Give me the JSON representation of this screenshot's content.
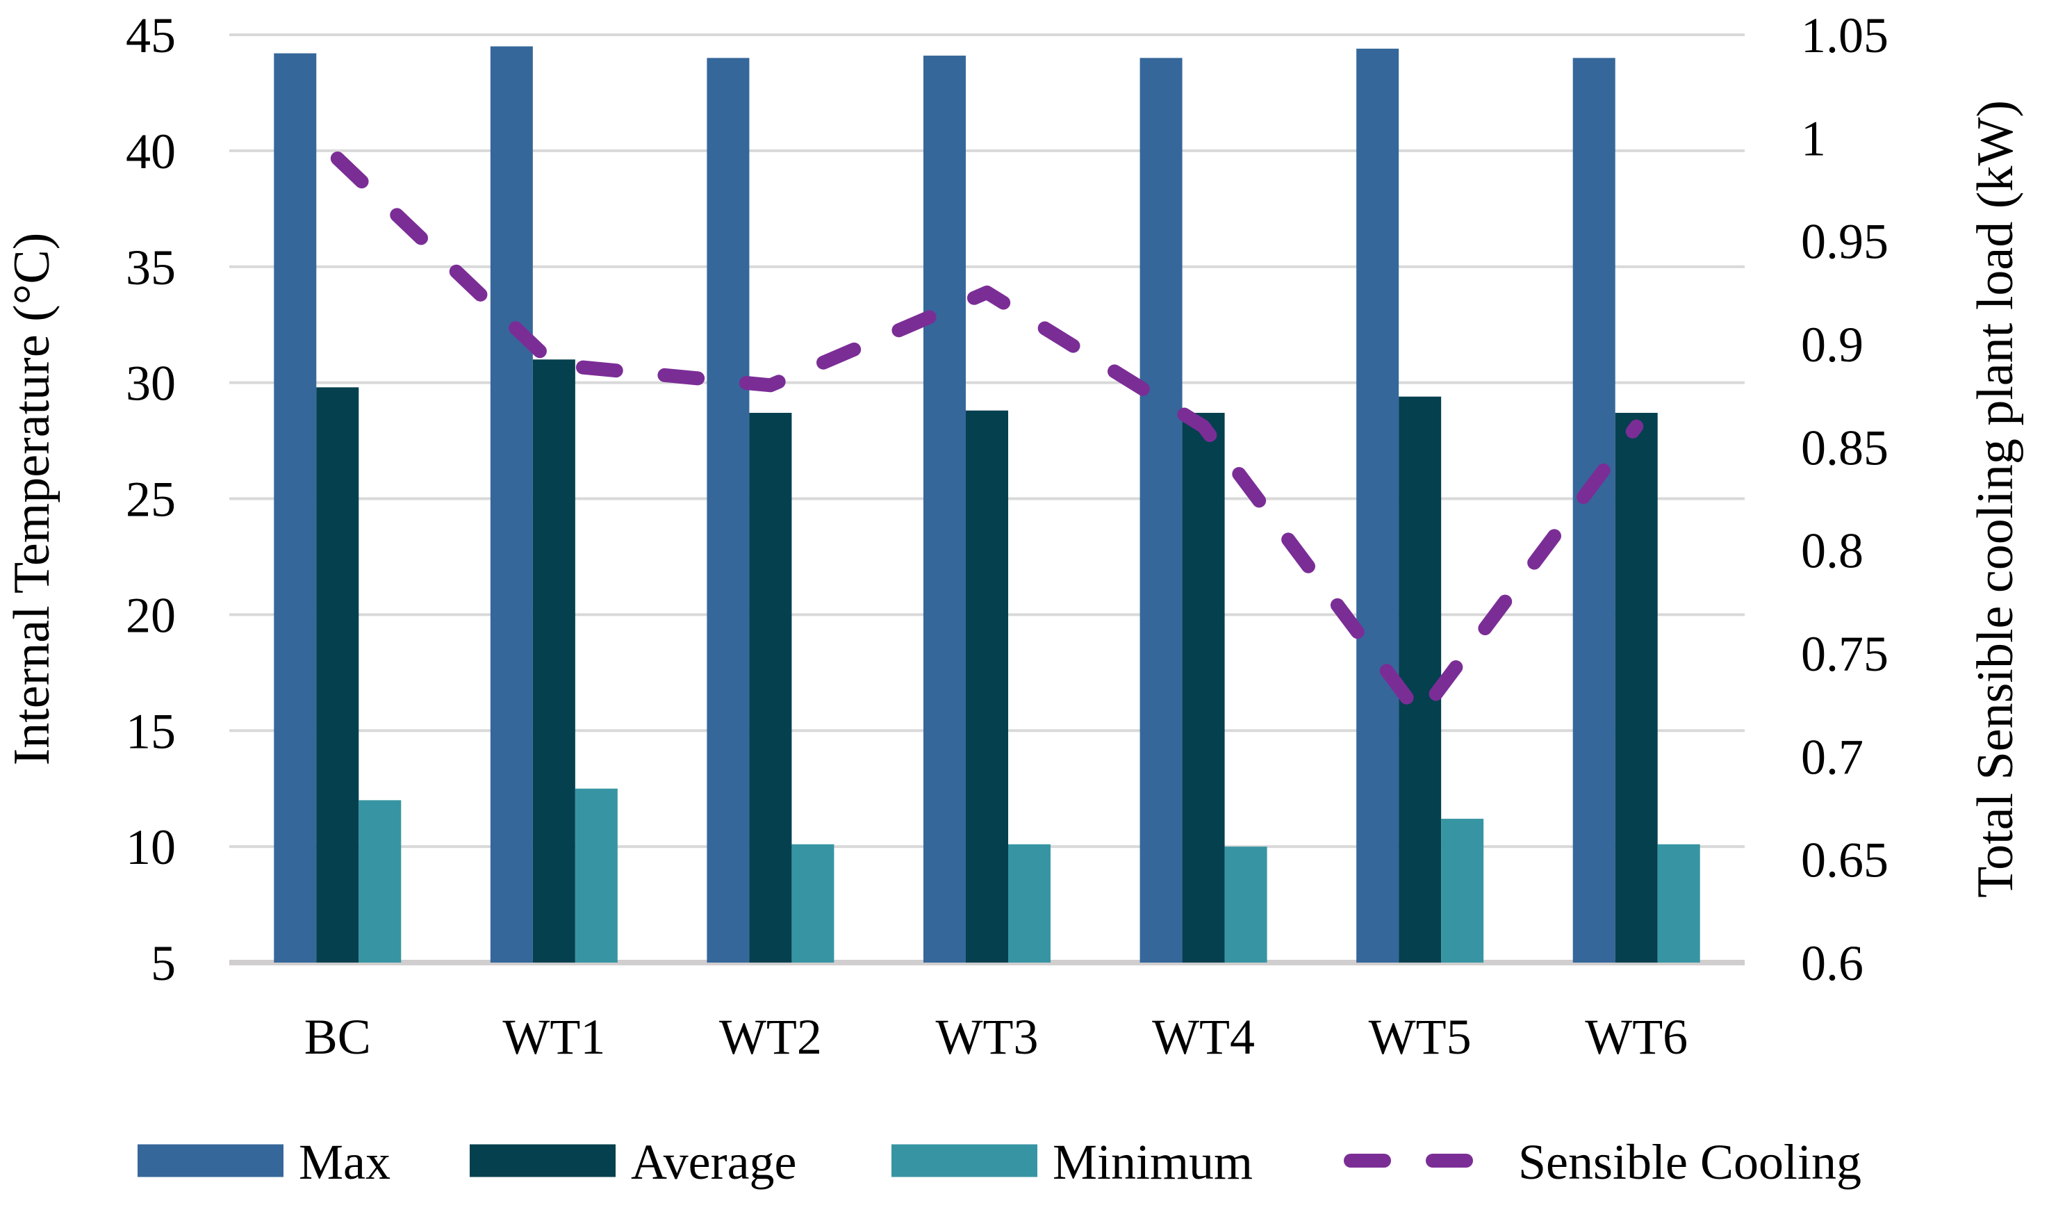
{
  "figure": {
    "background": "#FFFFFF",
    "grid_color": "#D9D9D9",
    "baseline_color": "#D0CECE"
  },
  "legend": {
    "items": [
      {
        "label": "Max",
        "marker": "swatch",
        "color": "#36679A"
      },
      {
        "label": "Average",
        "marker": "swatch",
        "color": "#05404F"
      },
      {
        "label": "Minimum",
        "marker": "swatch",
        "color": "#3795A3"
      },
      {
        "label": "Sensible Cooling",
        "marker": "dashed-line",
        "color": "#7B2D96"
      }
    ]
  },
  "chart_data": {
    "type": "bar+line-combo",
    "categories": [
      "BC",
      "WT1",
      "WT2",
      "WT3",
      "WT4",
      "WT5",
      "WT6"
    ],
    "series": [
      {
        "name": "Max",
        "type": "bar",
        "axis": "left",
        "color": "#36679A",
        "values": [
          44.2,
          44.5,
          44.0,
          44.1,
          44.0,
          44.4,
          44.0
        ]
      },
      {
        "name": "Average",
        "type": "bar",
        "axis": "left",
        "color": "#05404F",
        "values": [
          29.8,
          31.0,
          28.7,
          28.8,
          28.7,
          29.4,
          28.7
        ]
      },
      {
        "name": "Minimum",
        "type": "bar",
        "axis": "left",
        "color": "#3795A3",
        "values": [
          12.0,
          12.5,
          10.1,
          10.1,
          10.0,
          11.2,
          10.1
        ]
      },
      {
        "name": "Sensible Cooling",
        "type": "dashed-line",
        "axis": "right",
        "color": "#7B2D96",
        "values": [
          0.99,
          0.89,
          0.88,
          0.925,
          0.86,
          0.72,
          0.86
        ]
      }
    ],
    "ylabel_left": "Internal Temperature (°C)",
    "ylabel_right": "Total Sensible cooling plant load (kW)",
    "xlabel": "",
    "y_left": {
      "min": 5,
      "max": 45,
      "step": 5,
      "tick_labels": [
        "5",
        "10",
        "15",
        "20",
        "25",
        "30",
        "35",
        "40",
        "45"
      ]
    },
    "y_right": {
      "min": 0.6,
      "max": 1.05,
      "step": 0.05,
      "tick_labels": [
        "0.6",
        "0.65",
        "0.7",
        "0.75",
        "0.8",
        "0.85",
        "0.9",
        "0.95",
        "1",
        "1.05"
      ]
    },
    "grid": "horizontal",
    "legend_position": "bottom"
  }
}
